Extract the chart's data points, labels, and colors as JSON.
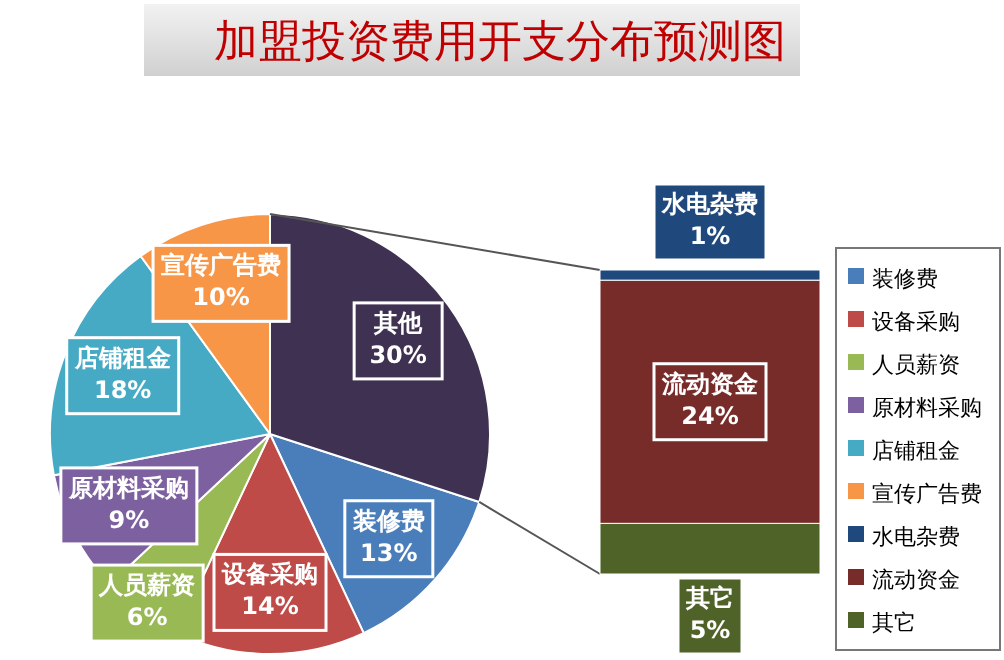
{
  "chart_data": [
    {
      "type": "pie",
      "title": "加盟投资费用开支分布预测图",
      "categories": [
        "装修费",
        "设备采购",
        "人员薪资",
        "原材料采购",
        "店铺租金",
        "宣传广告费",
        "其他"
      ],
      "values": [
        13,
        14,
        6,
        9,
        18,
        10,
        30
      ],
      "value_labels": [
        "13%",
        "14%",
        "6%",
        "9%",
        "18%",
        "10%",
        "30%"
      ],
      "colors": [
        "#4a7ebb",
        "#be4b48",
        "#98b954",
        "#7d60a0",
        "#46aac5",
        "#f79646",
        "#3f3151"
      ],
      "legend": "right"
    },
    {
      "type": "bar",
      "stacked": true,
      "categories": [
        null
      ],
      "legend": "right",
      "series": [
        {
          "name": "其它",
          "color": "#4f6228",
          "values": [
            5
          ],
          "value_labels": [
            "5%"
          ]
        },
        {
          "name": "流动资金",
          "color": "#772c2a",
          "values": [
            24
          ],
          "value_labels": [
            "24%"
          ]
        },
        {
          "name": "水电杂费",
          "color": "#1f497d",
          "values": [
            1
          ],
          "value_labels": [
            "1%"
          ]
        }
      ]
    }
  ]
}
